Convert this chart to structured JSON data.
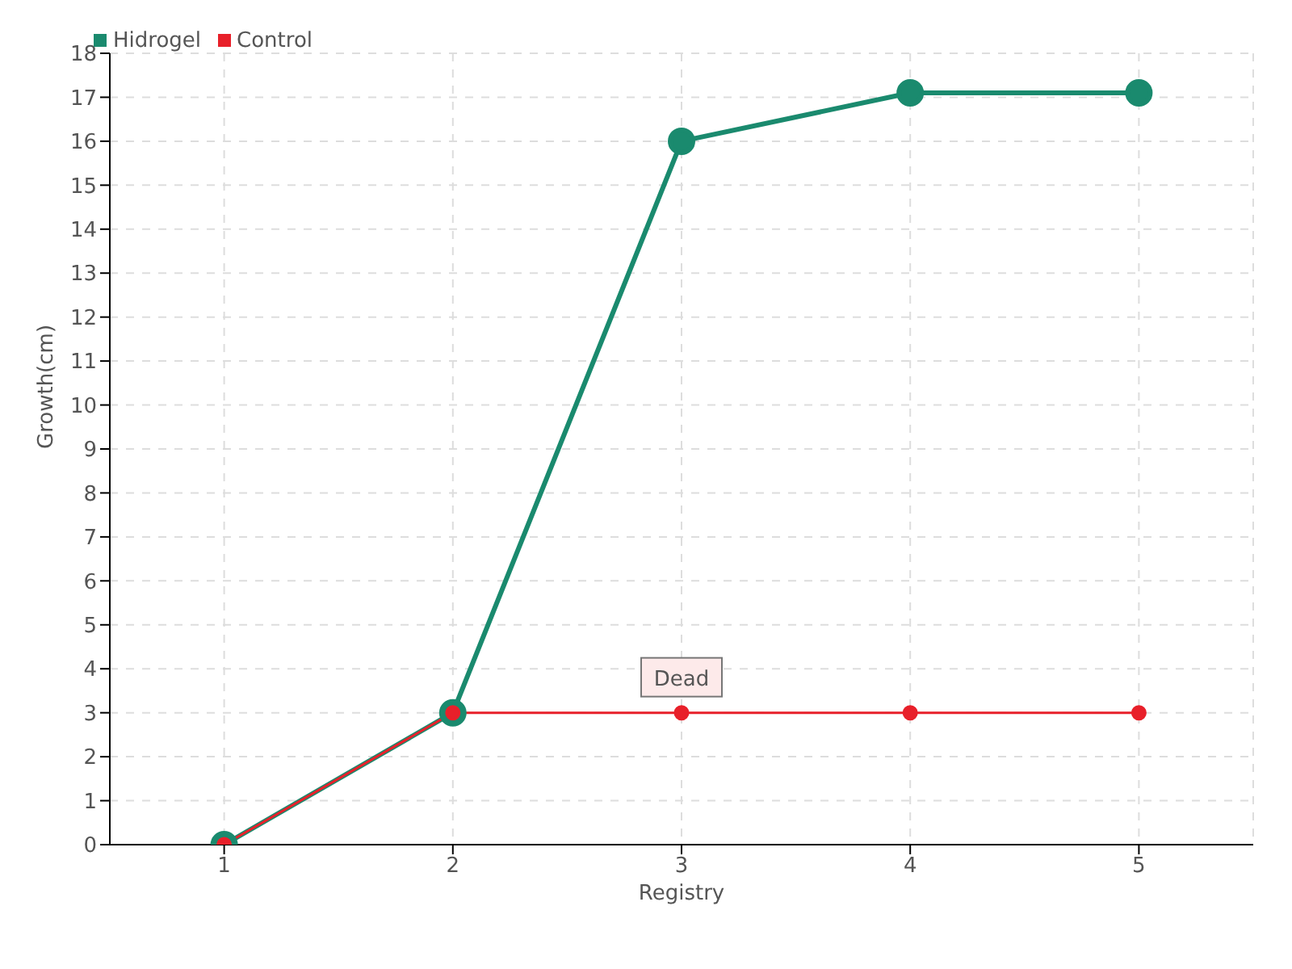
{
  "chart_data": {
    "type": "line",
    "xlabel": "Registry",
    "ylabel": "Growth(cm)",
    "x": [
      1,
      2,
      3,
      4,
      5
    ],
    "xlim": [
      0.5,
      5.5
    ],
    "xticks": [
      1,
      2,
      3,
      4,
      5
    ],
    "ylim": [
      0,
      18
    ],
    "yticks": [
      0,
      1,
      2,
      3,
      4,
      5,
      6,
      7,
      8,
      9,
      10,
      11,
      12,
      13,
      14,
      15,
      16,
      17,
      18
    ],
    "grid": true,
    "legend": "top left",
    "marker": "circle",
    "line_style": "solid",
    "series": [
      {
        "name": "Hidrogel",
        "color": "#1a8a6e",
        "values": [
          0,
          3,
          16,
          17.1,
          17.1
        ]
      },
      {
        "name": "Control",
        "color": "#e8202a",
        "values": [
          0,
          3,
          3,
          3,
          3
        ]
      }
    ],
    "annotations": [
      {
        "text": "Dead",
        "x": 3,
        "y": 3
      }
    ]
  }
}
